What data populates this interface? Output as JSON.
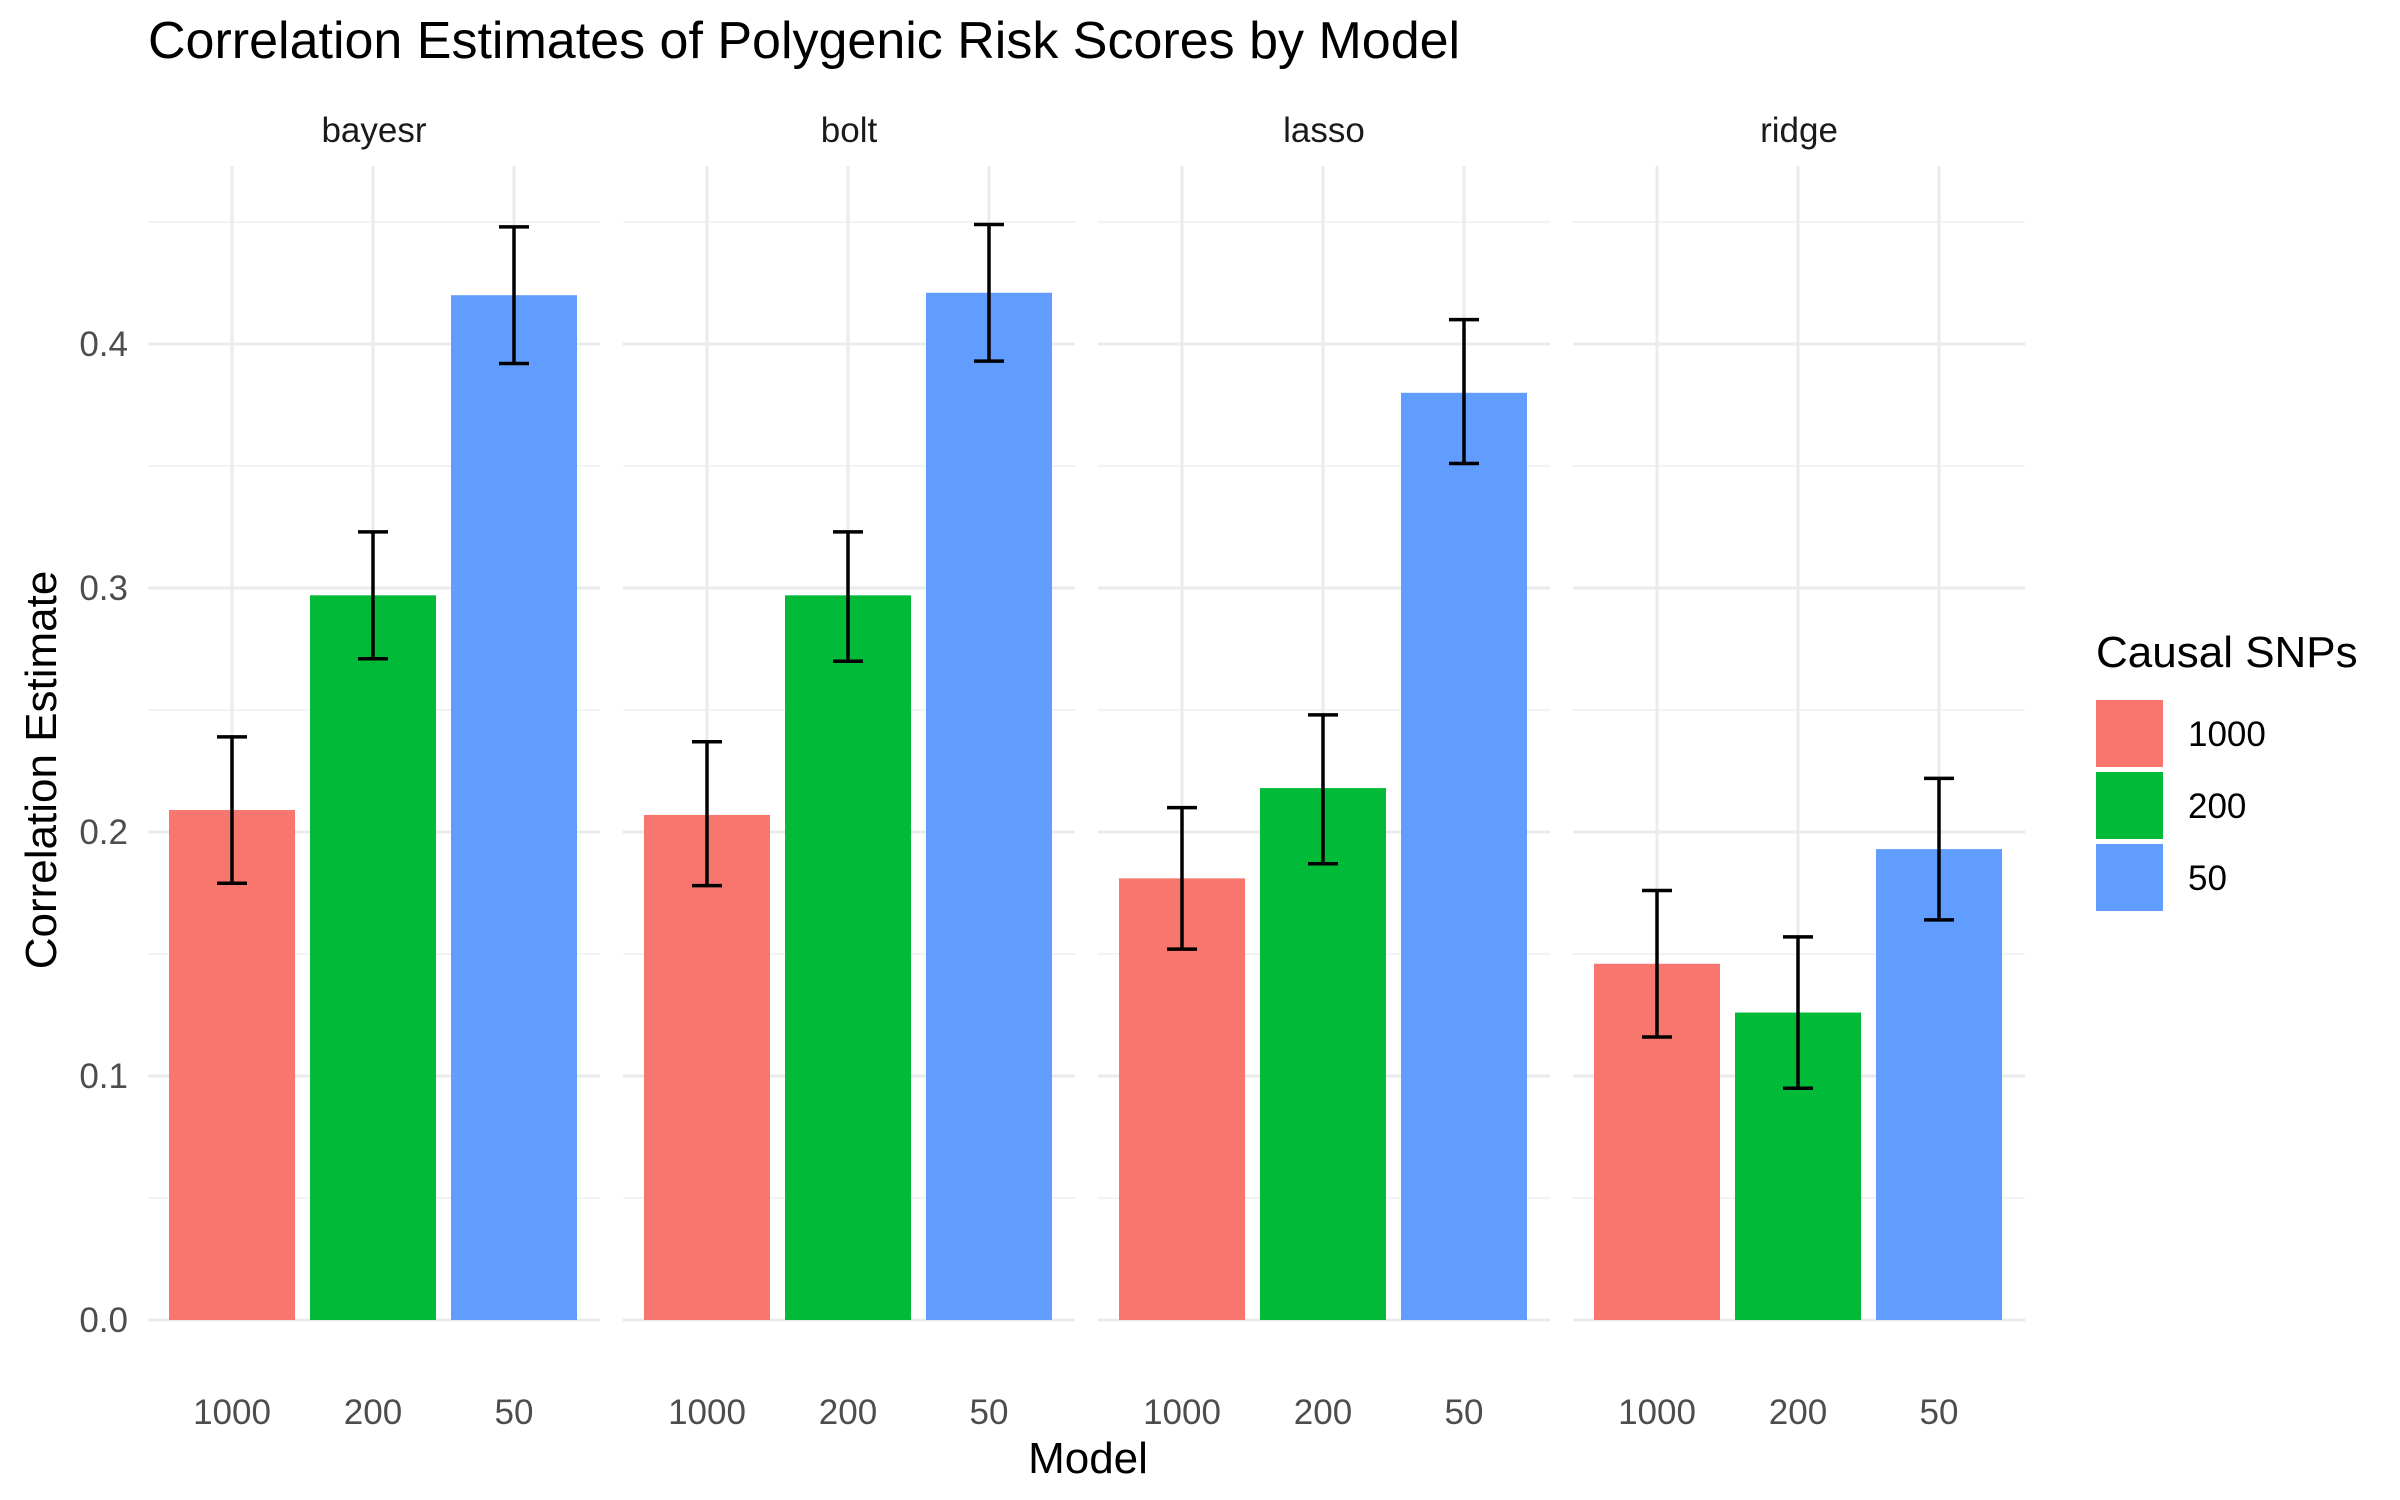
{
  "chart_data": {
    "type": "bar",
    "title": "Correlation Estimates of Polygenic Risk Scores by Model",
    "xlabel": "Model",
    "ylabel": "Correlation Estimate",
    "ylim": [
      0,
      0.45
    ],
    "y_ticks": [
      "0.0",
      "0.1",
      "0.2",
      "0.3",
      "0.4"
    ],
    "grid": true,
    "legend": {
      "title": "Causal SNPs",
      "placement": "right",
      "entries": [
        {
          "label": "1000",
          "color": "#F8766D"
        },
        {
          "label": "200",
          "color": "#00BA38"
        },
        {
          "label": "50",
          "color": "#619CFF"
        }
      ]
    },
    "facets": [
      {
        "label": "bayesr",
        "categories": [
          "1000",
          "200",
          "50"
        ],
        "values": [
          0.209,
          0.297,
          0.42
        ],
        "error_low": [
          0.179,
          0.271,
          0.392
        ],
        "error_high": [
          0.239,
          0.323,
          0.448
        ]
      },
      {
        "label": "bolt",
        "categories": [
          "1000",
          "200",
          "50"
        ],
        "values": [
          0.207,
          0.297,
          0.421
        ],
        "error_low": [
          0.178,
          0.27,
          0.393
        ],
        "error_high": [
          0.237,
          0.323,
          0.449
        ]
      },
      {
        "label": "lasso",
        "categories": [
          "1000",
          "200",
          "50"
        ],
        "values": [
          0.181,
          0.218,
          0.38
        ],
        "error_low": [
          0.152,
          0.187,
          0.351
        ],
        "error_high": [
          0.21,
          0.248,
          0.41
        ]
      },
      {
        "label": "ridge",
        "categories": [
          "1000",
          "200",
          "50"
        ],
        "values": [
          0.146,
          0.126,
          0.193
        ],
        "error_low": [
          0.116,
          0.095,
          0.164
        ],
        "error_high": [
          0.176,
          0.157,
          0.222
        ]
      }
    ]
  }
}
